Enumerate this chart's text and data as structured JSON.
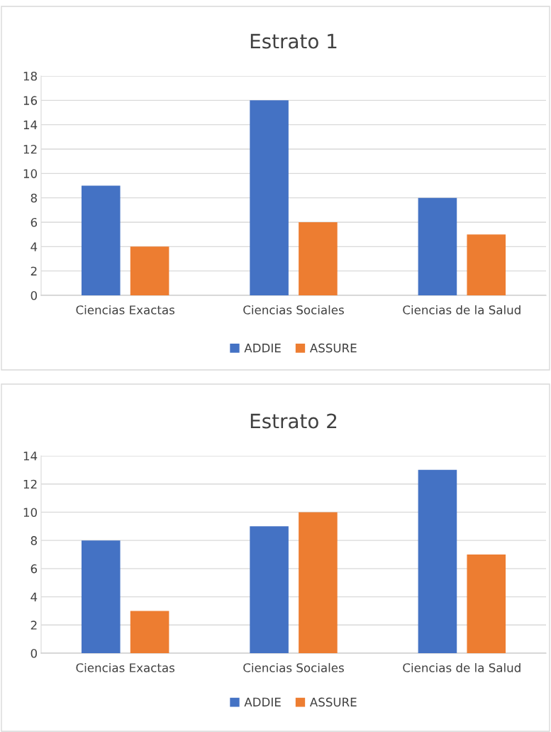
{
  "chart_data": [
    {
      "type": "bar",
      "title": "Estrato 1",
      "categories": [
        "Ciencias Exactas",
        "Ciencias Sociales",
        "Ciencias de la Salud"
      ],
      "series": [
        {
          "name": "ADDIE",
          "color": "#4472c4",
          "values": [
            9,
            16,
            8
          ]
        },
        {
          "name": "ASSURE",
          "color": "#ed7d31",
          "values": [
            4,
            6,
            5
          ]
        }
      ],
      "ylim": [
        0,
        18
      ],
      "yticks": [
        0,
        2,
        4,
        6,
        8,
        10,
        12,
        14,
        16,
        18
      ],
      "grid": "y",
      "legend": "bottom"
    },
    {
      "type": "bar",
      "title": "Estrato 2",
      "categories": [
        "Ciencias Exactas",
        "Ciencias Sociales",
        "Ciencias de la Salud"
      ],
      "series": [
        {
          "name": "ADDIE",
          "color": "#4472c4",
          "values": [
            8,
            9,
            13
          ]
        },
        {
          "name": "ASSURE",
          "color": "#ed7d31",
          "values": [
            3,
            10,
            7
          ]
        }
      ],
      "ylim": [
        0,
        14
      ],
      "yticks": [
        0,
        2,
        4,
        6,
        8,
        10,
        12,
        14
      ],
      "grid": "y",
      "legend": "bottom"
    }
  ]
}
